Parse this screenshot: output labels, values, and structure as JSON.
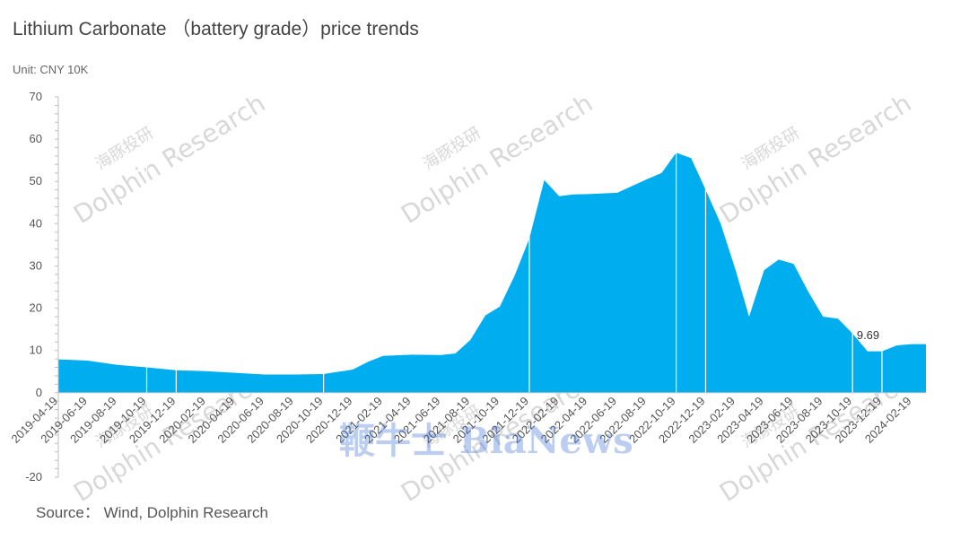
{
  "title": "Lithium Carbonate （battery grade）price trends",
  "unit_label": "Unit: CNY 10K",
  "source": "Source： Wind, Dolphin Research",
  "watermark": {
    "text": "Dolphin Research",
    "cn": "海豚投研",
    "overlay": "鞭牛士 BiaNews"
  },
  "colors": {
    "area": "#00aeef",
    "axis": "#bfbfbf",
    "text": "#555555"
  },
  "chart_data": {
    "type": "area",
    "title": "Lithium Carbonate （battery grade）price trends",
    "ylabel": "Unit: CNY 10K",
    "ylim": [
      -20,
      70
    ],
    "yticks": [
      -20,
      0,
      10,
      20,
      30,
      40,
      50,
      60,
      70
    ],
    "grid": false,
    "x_tick_labels": [
      "2019-04-19",
      "2019-06-19",
      "2019-08-19",
      "2019-10-19",
      "2019-12-19",
      "2020-02-19",
      "2020-04-19",
      "2020-06-19",
      "2020-08-19",
      "2020-10-19",
      "2020-12-19",
      "2021-02-19",
      "2021-04-19",
      "2021-06-19",
      "2021-08-19",
      "2021-10-19",
      "2021-12-19",
      "2022-02-19",
      "2022-04-19",
      "2022-06-19",
      "2022-08-19",
      "2022-10-19",
      "2022-12-19",
      "2023-02-19",
      "2023-04-19",
      "2023-06-19",
      "2023-08-19",
      "2023-10-19",
      "2023-12-19",
      "2024-02-19"
    ],
    "x": [
      "2019-04-19",
      "2019-06-19",
      "2019-08-19",
      "2019-10-19",
      "2019-12-19",
      "2020-02-19",
      "2020-04-19",
      "2020-06-19",
      "2020-08-19",
      "2020-10-19",
      "2020-12-19",
      "2021-01-19",
      "2021-02-19",
      "2021-04-19",
      "2021-06-19",
      "2021-07-19",
      "2021-08-19",
      "2021-09-19",
      "2021-10-19",
      "2021-11-19",
      "2021-12-19",
      "2022-01-19",
      "2022-02-19",
      "2022-03-19",
      "2022-04-19",
      "2022-06-19",
      "2022-08-19",
      "2022-09-19",
      "2022-10-19",
      "2022-11-19",
      "2022-12-19",
      "2023-01-19",
      "2023-02-19",
      "2023-03-19",
      "2023-04-19",
      "2023-05-19",
      "2023-06-19",
      "2023-07-19",
      "2023-08-19",
      "2023-09-19",
      "2023-10-19",
      "2023-11-19",
      "2023-12-19",
      "2024-01-19",
      "2024-02-19",
      "2024-03-19"
    ],
    "values": [
      7.9,
      7.6,
      6.6,
      6.0,
      5.3,
      5.1,
      4.7,
      4.3,
      4.3,
      4.4,
      5.5,
      7.3,
      8.7,
      9.0,
      8.9,
      9.3,
      12.5,
      18.3,
      20.4,
      27.8,
      36.5,
      50.3,
      46.5,
      46.9,
      47.0,
      47.3,
      50.5,
      52.0,
      56.8,
      55.5,
      48.0,
      40.0,
      29.0,
      18.0,
      29.0,
      31.5,
      30.5,
      24.0,
      18.0,
      17.5,
      14.0,
      9.8,
      9.8,
      11.2,
      11.5,
      11.5
    ],
    "annotations": [
      {
        "x": "2023-11-19",
        "y": 9.69,
        "text": "9.69"
      }
    ]
  }
}
